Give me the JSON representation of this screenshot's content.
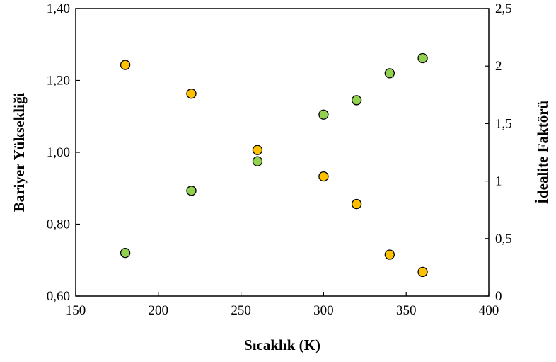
{
  "chart_data": {
    "type": "scatter",
    "xlabel": "Sıcaklık (K)",
    "ylabel_left": "Bariyer Yüksekliği",
    "ylabel_right": "İdealite Faktörü",
    "xlim": [
      150,
      400
    ],
    "ylim_left": [
      0.6,
      1.4
    ],
    "ylim_right": [
      0,
      2.5
    ],
    "x_ticks": [
      "150",
      "200",
      "250",
      "300",
      "350",
      "400"
    ],
    "y_left_ticks": [
      "0,60",
      "0,80",
      "1,00",
      "1,20",
      "1,40"
    ],
    "y_right_ticks": [
      "0",
      "0,5",
      "1",
      "1,5",
      "2",
      "2,5"
    ],
    "grid": false,
    "legend": "none",
    "series": [
      {
        "axis": "left",
        "color": "#92D050",
        "x": [
          180,
          220,
          260,
          300,
          320,
          340,
          360
        ],
        "y": [
          0.72,
          0.893,
          0.975,
          1.105,
          1.145,
          1.22,
          1.262
        ]
      },
      {
        "axis": "right",
        "color": "#FFC000",
        "x": [
          180,
          220,
          260,
          300,
          320,
          340,
          360
        ],
        "y": [
          2.01,
          1.76,
          1.27,
          1.04,
          0.8,
          0.36,
          0.21
        ]
      }
    ]
  }
}
